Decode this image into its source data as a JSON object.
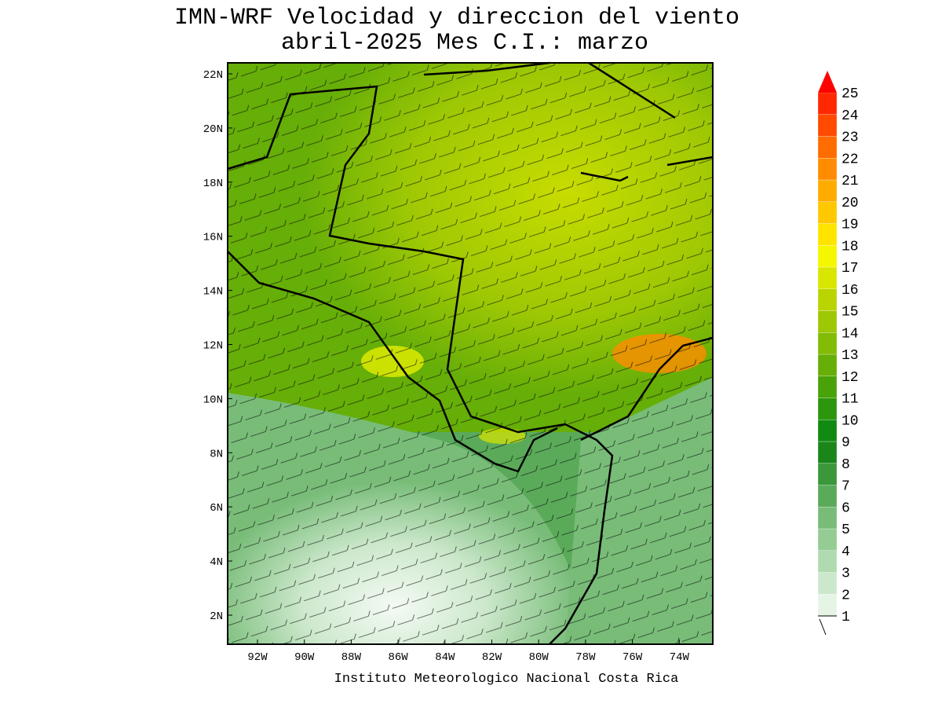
{
  "title": [
    "IMN-WRF Velocidad y direccion del viento",
    "abril-2025 Mes C.I.: marzo"
  ],
  "lat_labels": [
    "22N",
    "20N",
    "18N",
    "16N",
    "14N",
    "12N",
    "10N",
    "8N",
    "6N",
    "4N",
    "2N"
  ],
  "lon_labels": [
    "92W",
    "90W",
    "88W",
    "86W",
    "84W",
    "82W",
    "80W",
    "78W",
    "76W",
    "74W"
  ],
  "colorbar": {
    "levels": [
      1,
      2,
      3,
      4,
      5,
      6,
      7,
      8,
      9,
      10,
      11,
      12,
      13,
      14,
      15,
      16,
      17,
      18,
      19,
      20,
      21,
      22,
      23,
      24,
      25
    ],
    "colors": [
      "#e6f4e6",
      "#cce8cc",
      "#b0dab0",
      "#94cc94",
      "#78bc78",
      "#5aaa5a",
      "#3a983a",
      "#1a861a",
      "#108a10",
      "#2c960c",
      "#4aa20a",
      "#66ae08",
      "#82bc06",
      "#9ec804",
      "#bad402",
      "#d8e600",
      "#f6f600",
      "#ffe400",
      "#ffc800",
      "#ffac00",
      "#ff8c00",
      "#ff6c00",
      "#ff4a00",
      "#ff2800"
    ],
    "over_color": "#ff0000"
  },
  "footer": "Instituto Meteorologico Nacional Costa Rica"
}
